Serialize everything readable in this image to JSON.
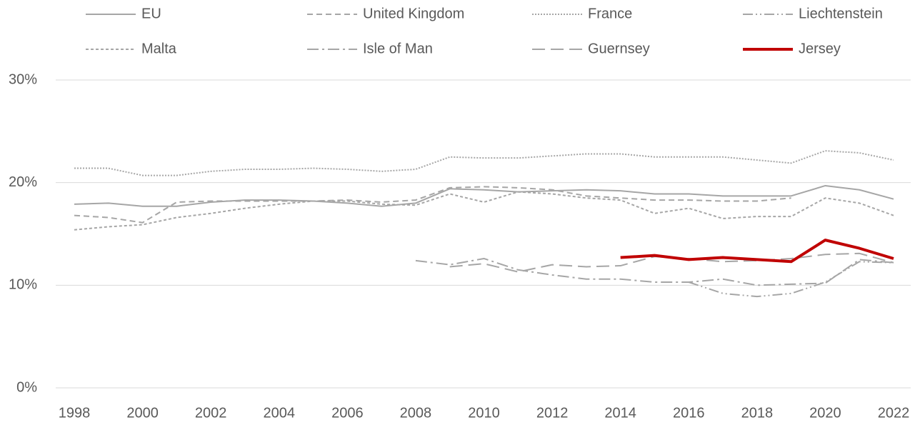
{
  "chart_data": {
    "type": "line",
    "x": [
      1998,
      1999,
      2000,
      2001,
      2002,
      2003,
      2004,
      2005,
      2006,
      2007,
      2008,
      2009,
      2010,
      2011,
      2012,
      2013,
      2014,
      2015,
      2016,
      2017,
      2018,
      2019,
      2020,
      2021,
      2022
    ],
    "xlim": [
      1998,
      2022
    ],
    "xticks": [
      1998,
      2000,
      2002,
      2004,
      2006,
      2008,
      2010,
      2012,
      2014,
      2016,
      2018,
      2020,
      2022
    ],
    "ylim": [
      0,
      30
    ],
    "yticks": [
      {
        "value": 0,
        "label": "0%"
      },
      {
        "value": 10,
        "label": "10%"
      },
      {
        "value": 20,
        "label": "20%"
      },
      {
        "value": 30,
        "label": "30%"
      }
    ],
    "grid": true,
    "legend": "top",
    "series": [
      {
        "name": "EU",
        "color": "#a6a6a6",
        "dash": "none",
        "width": 2,
        "values": [
          17.9,
          18.0,
          17.7,
          17.7,
          18.1,
          18.3,
          18.3,
          18.2,
          18.0,
          17.7,
          18.0,
          19.4,
          19.3,
          19.1,
          19.2,
          19.3,
          19.2,
          18.9,
          18.9,
          18.7,
          18.7,
          18.7,
          19.7,
          19.3,
          18.4
        ]
      },
      {
        "name": "United Kingdom",
        "color": "#a6a6a6",
        "dash": "8 5",
        "width": 2,
        "values": [
          16.8,
          16.6,
          16.1,
          18.1,
          18.2,
          18.2,
          18.2,
          18.2,
          18.3,
          18.1,
          18.3,
          19.5,
          19.6,
          19.5,
          19.3,
          18.7,
          18.5,
          18.3,
          18.3,
          18.2,
          18.2,
          18.5,
          null,
          null,
          null
        ]
      },
      {
        "name": "France",
        "color": "#a6a6a6",
        "dash": "2 2",
        "width": 2,
        "values": [
          21.4,
          21.4,
          20.7,
          20.7,
          21.1,
          21.3,
          21.3,
          21.4,
          21.3,
          21.1,
          21.3,
          22.5,
          22.4,
          22.4,
          22.6,
          22.8,
          22.8,
          22.5,
          22.5,
          22.5,
          22.2,
          21.9,
          23.1,
          22.9,
          22.2
        ]
      },
      {
        "name": "Liechtenstein",
        "color": "#a6a6a6",
        "dash": "14 4 2 4 2 4",
        "width": 2,
        "values": [
          null,
          null,
          null,
          null,
          null,
          null,
          null,
          null,
          null,
          null,
          null,
          null,
          null,
          null,
          null,
          null,
          null,
          null,
          10.3,
          9.2,
          8.9,
          9.2,
          10.3,
          12.3,
          12.2
        ]
      },
      {
        "name": "Malta",
        "color": "#a6a6a6",
        "dash": "4 3",
        "width": 2,
        "values": [
          15.4,
          15.7,
          15.9,
          16.6,
          17.0,
          17.5,
          17.9,
          18.2,
          18.2,
          17.9,
          17.8,
          18.9,
          18.1,
          19.1,
          18.9,
          18.5,
          18.3,
          17.0,
          17.5,
          16.5,
          16.7,
          16.7,
          18.5,
          18.0,
          16.8
        ]
      },
      {
        "name": "Isle of Man",
        "color": "#a6a6a6",
        "dash": "16 5 3 5",
        "width": 2,
        "values": [
          null,
          null,
          null,
          null,
          null,
          null,
          null,
          null,
          null,
          null,
          12.4,
          12.0,
          12.6,
          11.5,
          11.0,
          10.6,
          10.6,
          10.3,
          10.3,
          10.6,
          10.0,
          10.1,
          10.2,
          12.5,
          12.2
        ]
      },
      {
        "name": "Guernsey",
        "color": "#a6a6a6",
        "dash": "18 8",
        "width": 2,
        "values": [
          null,
          null,
          null,
          null,
          null,
          null,
          null,
          null,
          null,
          null,
          null,
          11.8,
          12.1,
          11.3,
          12.0,
          11.8,
          11.9,
          12.8,
          12.6,
          12.3,
          12.4,
          12.6,
          13.0,
          13.1,
          12.2
        ]
      },
      {
        "name": "Jersey",
        "color": "#c00000",
        "dash": "none",
        "width": 4,
        "values": [
          null,
          null,
          null,
          null,
          null,
          null,
          null,
          null,
          null,
          null,
          null,
          null,
          null,
          null,
          null,
          null,
          12.7,
          12.9,
          12.5,
          12.7,
          12.5,
          12.3,
          14.4,
          13.6,
          12.6
        ]
      }
    ]
  }
}
